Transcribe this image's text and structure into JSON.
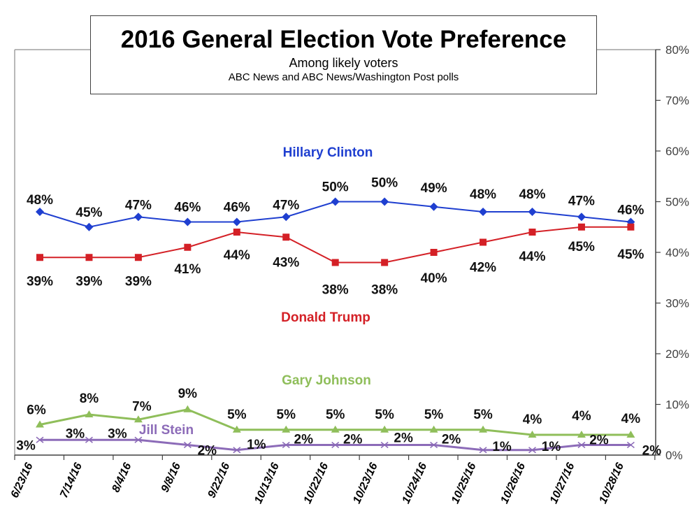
{
  "chart_data": {
    "type": "line",
    "title": "2016 General Election Vote Preference",
    "subtitle": "Among likely voters",
    "source": "ABC News and ABC News/Washington  Post polls",
    "xlabel": "",
    "ylabel": "",
    "y_axis_side": "right",
    "ylim": [
      0,
      80
    ],
    "yticks": [
      0,
      10,
      20,
      30,
      40,
      50,
      60,
      70,
      80
    ],
    "ytick_labels": [
      "0%",
      "10%",
      "20%",
      "30%",
      "40%",
      "50%",
      "60%",
      "70%",
      "80%"
    ],
    "grid": false,
    "legend": "inline labels",
    "categories": [
      "6/23/16",
      "7/14/16",
      "8/4/16",
      "9/8/16",
      "9/22/16",
      "10/13/16",
      "10/22/16",
      "10/23/16",
      "10/24/16",
      "10/25/16",
      "10/26/16",
      "10/27/16",
      "10/28/16"
    ],
    "series": [
      {
        "name": "Hillary Clinton",
        "color": "#1f3fd0",
        "marker": "diamond",
        "values": [
          48,
          45,
          47,
          46,
          46,
          47,
          50,
          50,
          49,
          48,
          48,
          47,
          46
        ],
        "labels": [
          "48%",
          "45%",
          "47%",
          "46%",
          "46%",
          "47%",
          "50%",
          "50%",
          "49%",
          "48%",
          "48%",
          "47%",
          "46%"
        ]
      },
      {
        "name": "Donald Trump",
        "color": "#d42026",
        "marker": "square",
        "values": [
          39,
          39,
          39,
          41,
          44,
          43,
          38,
          38,
          40,
          42,
          44,
          45,
          45
        ],
        "labels": [
          "39%",
          "39%",
          "39%",
          "41%",
          "44%",
          "43%",
          "38%",
          "38%",
          "40%",
          "42%",
          "44%",
          "45%",
          "45%"
        ]
      },
      {
        "name": "Gary Johnson",
        "color": "#8fbe5a",
        "marker": "triangle",
        "values": [
          6,
          8,
          7,
          9,
          5,
          5,
          5,
          5,
          5,
          5,
          4,
          4,
          4
        ],
        "labels": [
          "6%",
          "8%",
          "7%",
          "9%",
          "5%",
          "5%",
          "5%",
          "5%",
          "5%",
          "5%",
          "4%",
          "4%",
          "4%"
        ]
      },
      {
        "name": "Jill Stein",
        "color": "#8c6bb8",
        "marker": "x",
        "values": [
          3,
          3,
          3,
          2,
          1,
          2,
          2,
          2,
          2,
          1,
          1,
          2,
          2
        ],
        "labels": [
          "3%",
          "3%",
          "3%",
          "2%",
          "1%",
          "2%",
          "2%",
          "2%",
          "2%",
          "1%",
          "1%",
          "2%",
          "2%"
        ]
      }
    ]
  }
}
